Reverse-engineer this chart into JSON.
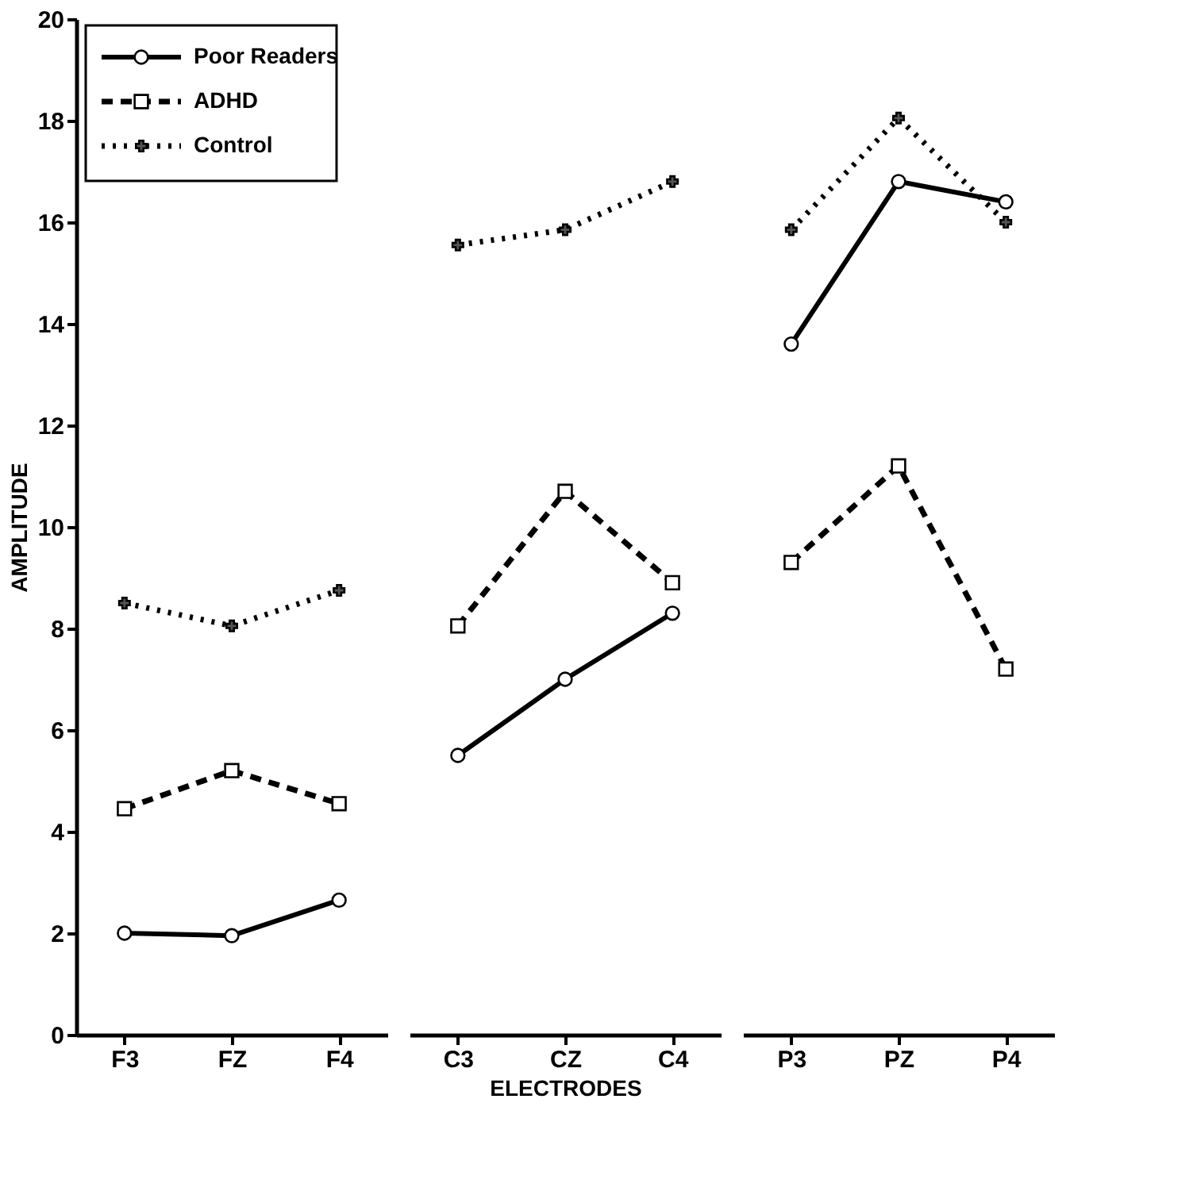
{
  "chart_data": [
    {
      "type": "line",
      "categories": [
        "F3",
        "FZ",
        "F4"
      ],
      "ylabel": "AMPLITUDE",
      "ylim": [
        0,
        20
      ],
      "yticks": [
        0,
        2,
        4,
        6,
        8,
        10,
        12,
        14,
        16,
        18,
        20
      ],
      "legend": "top left",
      "grid": false,
      "series": [
        {
          "name": "Poor Readers",
          "color": "#000000",
          "marker": "circle",
          "line_style": "solid",
          "values": [
            2.0,
            1.95,
            2.65
          ]
        },
        {
          "name": "ADHD",
          "color": "#000000",
          "marker": "square",
          "line_style": "dashed",
          "values": [
            4.45,
            5.2,
            4.55
          ]
        },
        {
          "name": "Control",
          "color": "#000000",
          "marker": "cross",
          "line_style": "dotted",
          "values": [
            8.5,
            8.05,
            8.75
          ]
        }
      ]
    },
    {
      "type": "line",
      "categories": [
        "C3",
        "CZ",
        "C4"
      ],
      "xlabel": "ELECTRODES",
      "ylim": [
        0,
        20
      ],
      "tick_labels": "x",
      "grid": false,
      "series": [
        {
          "color": "#000000",
          "marker": "circle",
          "line_style": "solid",
          "values": [
            5.5,
            7.0,
            8.3
          ]
        },
        {
          "color": "#000000",
          "marker": "square",
          "line_style": "dashed",
          "values": [
            8.05,
            10.7,
            8.9
          ]
        },
        {
          "color": "#000000",
          "marker": "cross",
          "line_style": "dotted",
          "values": [
            15.55,
            15.85,
            16.8
          ]
        }
      ]
    },
    {
      "type": "line",
      "categories": [
        "P3",
        "PZ",
        "P4"
      ],
      "ylim": [
        0,
        20
      ],
      "tick_labels": "x",
      "grid": false,
      "series": [
        {
          "color": "#000000",
          "marker": "circle",
          "line_style": "solid",
          "values": [
            13.6,
            16.8,
            16.4
          ]
        },
        {
          "color": "#000000",
          "marker": "square",
          "line_style": "dashed",
          "values": [
            9.3,
            11.2,
            7.2
          ]
        },
        {
          "color": "#000000",
          "marker": "cross",
          "line_style": "dotted",
          "values": [
            15.85,
            18.05,
            16.0
          ]
        }
      ]
    }
  ]
}
